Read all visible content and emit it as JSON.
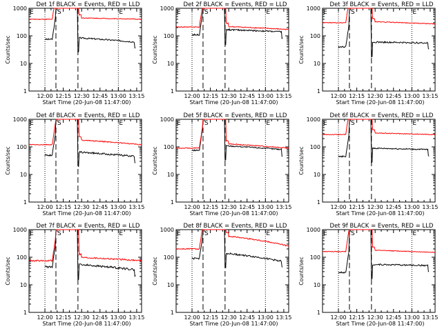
{
  "figure": {
    "ylabel": "Counts/sec",
    "xlabel": "Start Time (20-Jun-08 11:47:00)",
    "xticks": [
      "12:00",
      "12:15",
      "12:30",
      "12:45",
      "13:00",
      "13:15"
    ],
    "yticks": [
      "1",
      "10",
      "100",
      "1000"
    ],
    "markers": {
      "start": "S",
      "end": "E"
    },
    "colors": {
      "events": "#000000",
      "lld": "#ff0000"
    }
  },
  "chart_data": [
    {
      "type": "line",
      "title": "Det 1f BLACK = Events, RED = LLD",
      "xlabel": "Start Time (20-Jun-08 11:47:00)",
      "ylabel": "Counts/sec",
      "yscale": "log",
      "ylim": [
        1,
        1000
      ],
      "x_range_min": [
        0,
        92
      ],
      "x_ticks_min": [
        13,
        28,
        43,
        58,
        73,
        88
      ],
      "dashed_at_min": [
        22,
        40
      ],
      "dotted_at_min": [
        13,
        73
      ],
      "series": [
        {
          "name": "Events",
          "color": "#000000",
          "before": 75,
          "between_high": 800,
          "after_start": 85,
          "after_end": 60,
          "noise": 0.06
        },
        {
          "name": "LLD",
          "color": "#ff0000",
          "before": 400,
          "between_high": 900,
          "after_start": 450,
          "after_end": 400,
          "noise": 0.03
        }
      ]
    },
    {
      "type": "line",
      "title": "Det 2f BLACK = Events, RED = LLD",
      "xlabel": "Start Time (20-Jun-08 11:47:00)",
      "ylabel": "Counts/sec",
      "yscale": "log",
      "ylim": [
        1,
        1000
      ],
      "x_range_min": [
        0,
        92
      ],
      "x_ticks_min": [
        13,
        28,
        43,
        58,
        73,
        88
      ],
      "dashed_at_min": [
        22,
        40
      ],
      "dotted_at_min": [
        13,
        73
      ],
      "series": [
        {
          "name": "Events",
          "color": "#000000",
          "before": 110,
          "between_high": 800,
          "after_start": 170,
          "after_end": 140,
          "noise": 0.06
        },
        {
          "name": "LLD",
          "color": "#ff0000",
          "before": 210,
          "between_high": 900,
          "after_start": 220,
          "after_end": 170,
          "noise": 0.04
        }
      ]
    },
    {
      "type": "line",
      "title": "Det 3f BLACK = Events, RED = LLD",
      "xlabel": "Start Time (20-Jun-08 11:47:00)",
      "ylabel": "Counts/sec",
      "yscale": "log",
      "ylim": [
        1,
        1000
      ],
      "x_range_min": [
        0,
        92
      ],
      "x_ticks_min": [
        13,
        28,
        43,
        58,
        73,
        88
      ],
      "dashed_at_min": [
        22,
        40
      ],
      "dotted_at_min": [
        13,
        73
      ],
      "series": [
        {
          "name": "Events",
          "color": "#000000",
          "before": 40,
          "between_high": 800,
          "after_start": 60,
          "after_end": 55,
          "noise": 0.06
        },
        {
          "name": "LLD",
          "color": "#ff0000",
          "before": 300,
          "between_high": 900,
          "after_start": 330,
          "after_end": 270,
          "noise": 0.03
        }
      ]
    },
    {
      "type": "line",
      "title": "Det 4f BLACK = Events, RED = LLD",
      "xlabel": "Start Time (20-Jun-08 11:47:00)",
      "ylabel": "Counts/sec",
      "yscale": "log",
      "ylim": [
        1,
        1000
      ],
      "x_range_min": [
        0,
        92
      ],
      "x_ticks_min": [
        13,
        28,
        43,
        58,
        73,
        88
      ],
      "dashed_at_min": [
        22,
        40
      ],
      "dotted_at_min": [
        13,
        73
      ],
      "series": [
        {
          "name": "Events",
          "color": "#000000",
          "before": 50,
          "between_high": 800,
          "after_start": 65,
          "after_end": 45,
          "noise": 0.07
        },
        {
          "name": "LLD",
          "color": "#ff0000",
          "before": 120,
          "between_high": 900,
          "after_start": 180,
          "after_end": 120,
          "noise": 0.04
        }
      ]
    },
    {
      "type": "line",
      "title": "Det 5f BLACK = Events, RED = LLD",
      "xlabel": "Start Time (20-Jun-08 11:47:00)",
      "ylabel": "Counts/sec",
      "yscale": "log",
      "ylim": [
        1,
        1000
      ],
      "x_range_min": [
        0,
        92
      ],
      "x_ticks_min": [
        13,
        28,
        43,
        58,
        73,
        88
      ],
      "dashed_at_min": [
        22,
        40
      ],
      "dotted_at_min": [
        13,
        73
      ],
      "series": [
        {
          "name": "Events",
          "color": "#000000",
          "before": 75,
          "between_high": 800,
          "after_start": 110,
          "after_end": 80,
          "noise": 0.05
        },
        {
          "name": "LLD",
          "color": "#ff0000",
          "before": 90,
          "between_high": 900,
          "after_start": 130,
          "after_end": 90,
          "noise": 0.04
        }
      ]
    },
    {
      "type": "line",
      "title": "Det 6f BLACK = Events, RED = LLD",
      "xlabel": "Start Time (20-Jun-08 11:47:00)",
      "ylabel": "Counts/sec",
      "yscale": "log",
      "ylim": [
        1,
        1000
      ],
      "x_range_min": [
        0,
        92
      ],
      "x_ticks_min": [
        13,
        28,
        43,
        58,
        73,
        88
      ],
      "dashed_at_min": [
        22,
        40
      ],
      "dotted_at_min": [
        13,
        73
      ],
      "series": [
        {
          "name": "Events",
          "color": "#000000",
          "before": 45,
          "between_high": 800,
          "after_start": 90,
          "after_end": 80,
          "noise": 0.05
        },
        {
          "name": "LLD",
          "color": "#ff0000",
          "before": 280,
          "between_high": 900,
          "after_start": 320,
          "after_end": 280,
          "noise": 0.03
        }
      ]
    },
    {
      "type": "line",
      "title": "Det 7f BLACK = Events, RED = LLD",
      "xlabel": "Start Time (20-Jun-08 11:47:00)",
      "ylabel": "Counts/sec",
      "yscale": "log",
      "ylim": [
        1,
        1000
      ],
      "x_range_min": [
        0,
        92
      ],
      "x_ticks_min": [
        13,
        28,
        43,
        58,
        73,
        88
      ],
      "dashed_at_min": [
        22,
        40
      ],
      "dotted_at_min": [
        13,
        73
      ],
      "series": [
        {
          "name": "Events",
          "color": "#000000",
          "before": 45,
          "between_high": 800,
          "after_start": 55,
          "after_end": 35,
          "noise": 0.08
        },
        {
          "name": "LLD",
          "color": "#ff0000",
          "before": 75,
          "between_high": 900,
          "after_start": 100,
          "after_end": 75,
          "noise": 0.06
        }
      ]
    },
    {
      "type": "line",
      "title": "Det 8f BLACK = Events, RED = LLD",
      "xlabel": "Start Time (20-Jun-08 11:47:00)",
      "ylabel": "Counts/sec",
      "yscale": "log",
      "ylim": [
        1,
        1000
      ],
      "x_range_min": [
        0,
        92
      ],
      "x_ticks_min": [
        13,
        28,
        43,
        58,
        73,
        88
      ],
      "dashed_at_min": [
        22,
        40
      ],
      "dotted_at_min": [
        13,
        73
      ],
      "series": [
        {
          "name": "Events",
          "color": "#000000",
          "before": 90,
          "between_high": 800,
          "after_start": 140,
          "after_end": 70,
          "noise": 0.07
        },
        {
          "name": "LLD",
          "color": "#ff0000",
          "before": 200,
          "between_high": 900,
          "after_start": 600,
          "after_end": 250,
          "noise": 0.05
        }
      ]
    },
    {
      "type": "line",
      "title": "Det 9f BLACK = Events, RED = LLD",
      "xlabel": "Start Time (20-Jun-08 11:47:00)",
      "ylabel": "Counts/sec",
      "yscale": "log",
      "ylim": [
        1,
        1000
      ],
      "x_range_min": [
        0,
        92
      ],
      "x_ticks_min": [
        13,
        28,
        43,
        58,
        73,
        88
      ],
      "dashed_at_min": [
        22,
        40
      ],
      "dotted_at_min": [
        13,
        73
      ],
      "series": [
        {
          "name": "Events",
          "color": "#000000",
          "before": 28,
          "between_high": 800,
          "after_start": 55,
          "after_end": 50,
          "noise": 0.06
        },
        {
          "name": "LLD",
          "color": "#ff0000",
          "before": 160,
          "between_high": 900,
          "after_start": 180,
          "after_end": 150,
          "noise": 0.03
        }
      ]
    }
  ]
}
